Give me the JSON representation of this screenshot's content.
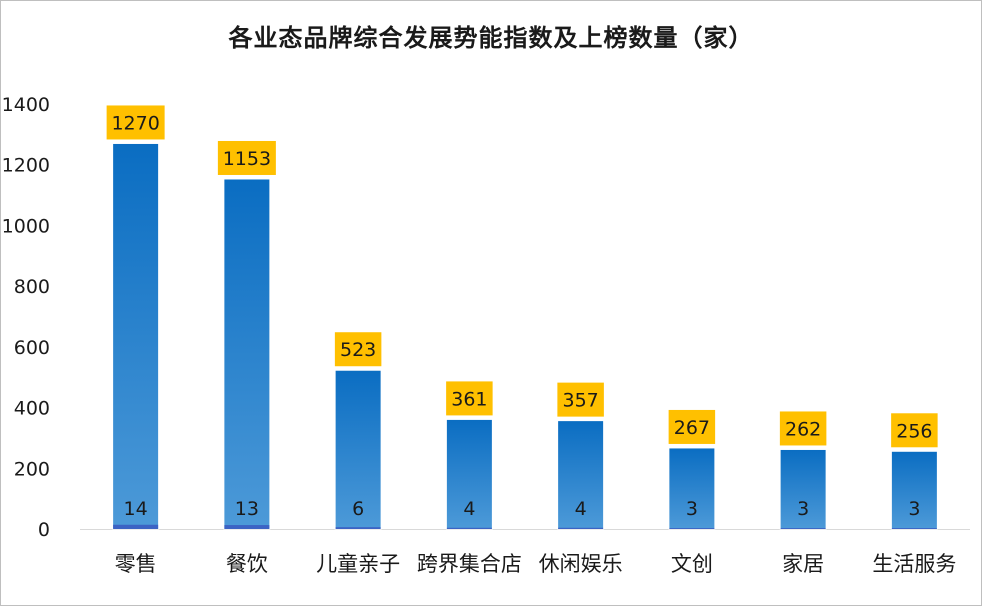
{
  "chart_data": {
    "type": "bar",
    "title": "各业态品牌综合发展势能指数及上榜数量（家）",
    "categories": [
      "零售",
      "餐饮",
      "儿童亲子",
      "跨界集合店",
      "休闲娱乐",
      "文创",
      "家居",
      "生活服务"
    ],
    "series": [
      {
        "name": "综合发展势能指数",
        "values": [
          1270,
          1153,
          523,
          361,
          357,
          267,
          262,
          256
        ]
      },
      {
        "name": "上榜数量（家）",
        "values": [
          14,
          13,
          6,
          4,
          4,
          3,
          3,
          3
        ]
      }
    ],
    "yticks": [
      "0",
      "200",
      "400",
      "600",
      "800",
      "1000",
      "1200",
      "1400"
    ],
    "ylim": [
      0,
      1400
    ],
    "xlabel": "",
    "ylabel": "",
    "grid": false,
    "colors": {
      "bar_top": "#0a6dc2",
      "bar_bottom": "#4d9ad8",
      "count_bar": "#3c63c4",
      "value_label_bg": "#ffc000"
    }
  }
}
